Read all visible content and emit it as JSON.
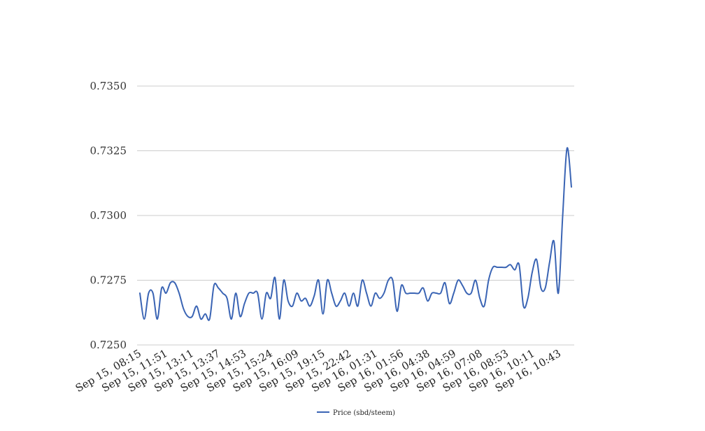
{
  "chart_data": {
    "type": "line",
    "title": "",
    "xlabel": "",
    "ylabel": "",
    "ylim": [
      0.725,
      0.735
    ],
    "yticks": [
      "0.7250",
      "0.7275",
      "0.7300",
      "0.7325",
      "0.7350"
    ],
    "grid": "horizontal",
    "legend_position": "bottom-center",
    "colors": {
      "line": "#3a64b4",
      "grid": "#cccccc"
    },
    "x_tick_labels": [
      "Sep 15, 08:15",
      "Sep 15, 11:51",
      "Sep 15, 13:11",
      "Sep 15, 13:37",
      "Sep 15, 14:53",
      "Sep 15, 15:24",
      "Sep 15, 16:09",
      "Sep 15, 19:15",
      "Sep 15, 22:42",
      "Sep 16, 01:31",
      "Sep 16, 01:56",
      "Sep 16, 04:38",
      "Sep 16, 04:59",
      "Sep 16, 07:08",
      "Sep 16, 08:53",
      "Sep 16, 10:11",
      "Sep 16, 10:43"
    ],
    "series": [
      {
        "name": "Price (sbd/steem)",
        "values": [
          0.727,
          0.726,
          0.727,
          0.727,
          0.726,
          0.7272,
          0.727,
          0.7274,
          0.7274,
          0.727,
          0.7264,
          0.7261,
          0.7261,
          0.7265,
          0.726,
          0.7262,
          0.726,
          0.7273,
          0.7272,
          0.727,
          0.7268,
          0.726,
          0.727,
          0.7261,
          0.7266,
          0.727,
          0.727,
          0.727,
          0.726,
          0.727,
          0.7268,
          0.7276,
          0.726,
          0.7275,
          0.7267,
          0.7265,
          0.727,
          0.7267,
          0.7268,
          0.7265,
          0.7269,
          0.7275,
          0.7262,
          0.7275,
          0.727,
          0.7265,
          0.7267,
          0.727,
          0.7265,
          0.727,
          0.7265,
          0.7275,
          0.727,
          0.7265,
          0.727,
          0.7268,
          0.727,
          0.7275,
          0.7275,
          0.7263,
          0.7273,
          0.727,
          0.727,
          0.727,
          0.727,
          0.7272,
          0.7267,
          0.727,
          0.727,
          0.727,
          0.7274,
          0.7266,
          0.727,
          0.7275,
          0.7273,
          0.727,
          0.727,
          0.7275,
          0.7268,
          0.7265,
          0.7275,
          0.728,
          0.728,
          0.728,
          0.728,
          0.7281,
          0.7279,
          0.7281,
          0.7265,
          0.7268,
          0.7278,
          0.7283,
          0.7272,
          0.7272,
          0.7282,
          0.729,
          0.727,
          0.73,
          0.7326,
          0.7311
        ]
      }
    ]
  }
}
